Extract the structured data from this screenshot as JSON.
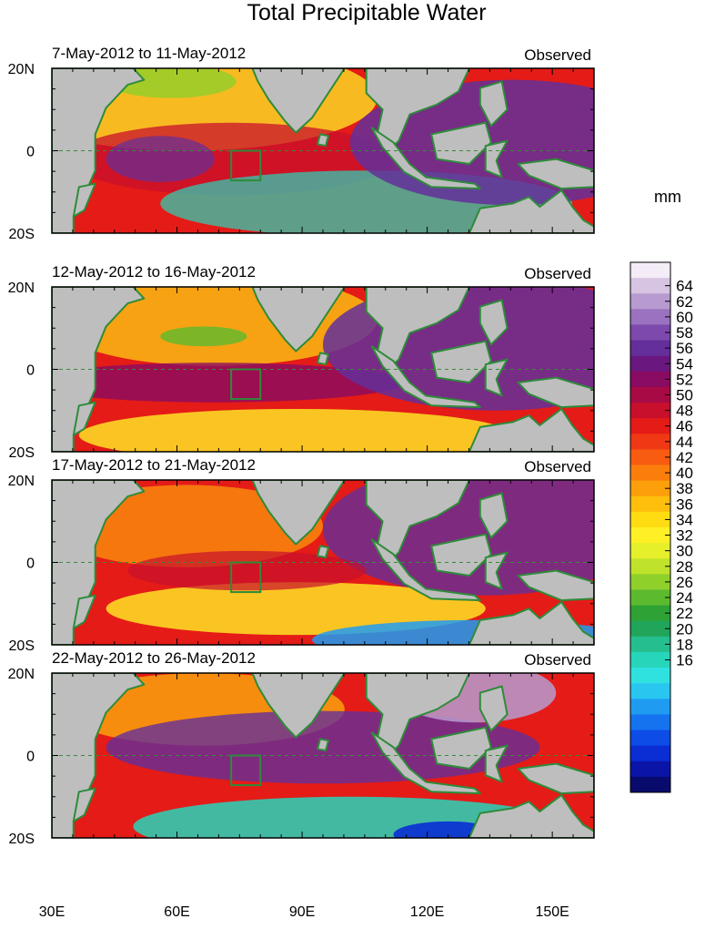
{
  "title": "Total Precipitable Water",
  "units": "mm",
  "panels": [
    {
      "period": "7-May-2012 to 11-May-2012",
      "tag": "Observed"
    },
    {
      "period": "12-May-2012 to 16-May-2012",
      "tag": "Observed"
    },
    {
      "period": "17-May-2012 to 21-May-2012",
      "tag": "Observed"
    },
    {
      "period": "22-May-2012 to 26-May-2012",
      "tag": "Observed"
    }
  ],
  "lat_labels": [
    "20N",
    "0",
    "20S"
  ],
  "lon_labels": [
    "30E",
    "60E",
    "90E",
    "120E",
    "150E"
  ],
  "colorbar": {
    "labels": [
      "64",
      "62",
      "60",
      "58",
      "56",
      "54",
      "52",
      "50",
      "48",
      "46",
      "44",
      "42",
      "40",
      "38",
      "36",
      "34",
      "32",
      "30",
      "28",
      "26",
      "24",
      "22",
      "20",
      "18",
      "16"
    ],
    "colors": [
      "#f4ecf6",
      "#d6c4e2",
      "#b79bd0",
      "#9a72bf",
      "#7d49ad",
      "#642f9a",
      "#6a1880",
      "#8a0b62",
      "#a80a45",
      "#c8102c",
      "#e41b17",
      "#f13815",
      "#f75c11",
      "#fb7e0c",
      "#fd9e0b",
      "#ffbe0c",
      "#ffdc12",
      "#fff026",
      "#e5ef2a",
      "#bfe32a",
      "#8fd02b",
      "#5cba2e",
      "#2ea234",
      "#20a55a",
      "#25be8f",
      "#27d5bb",
      "#2fe2e0",
      "#29c6f0",
      "#1f9cf2",
      "#1573ef",
      "#0d4ce6",
      "#0a2dd4",
      "#0a15a8",
      "#080b6c"
    ]
  }
}
